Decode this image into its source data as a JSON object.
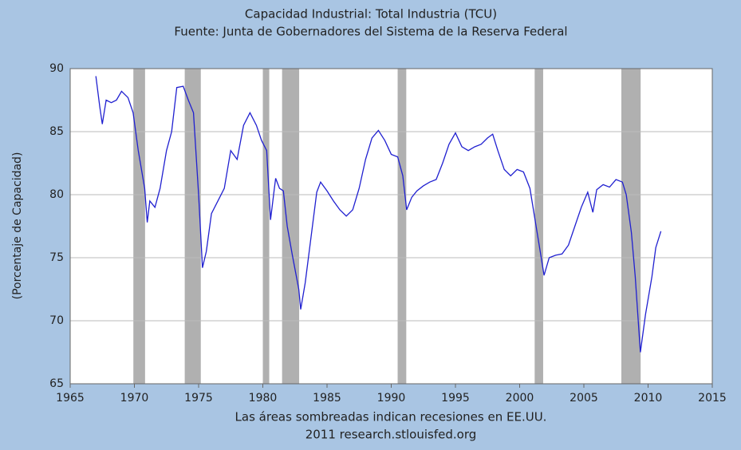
{
  "chart_data": {
    "type": "line",
    "title": "Capacidad Industrial: Total Industria (TCU)",
    "subtitle": "Fuente: Junta de Gobernadores del Sistema de la Reserva Federal",
    "ylabel": "(Porcentaje de Capacidad)",
    "note": "Las áreas sombreadas indican recesiones en EE.UU.",
    "source": "2011 research.stlouisfed.org",
    "xlim": [
      1965,
      2015
    ],
    "xticks": [
      1965,
      1970,
      1975,
      1980,
      1985,
      1990,
      1995,
      2000,
      2005,
      2010,
      2015
    ],
    "ylim": [
      65,
      90
    ],
    "yticks": [
      65,
      70,
      75,
      80,
      85,
      90
    ],
    "grid": true,
    "recession_color": "#b0b0b0",
    "recessions": [
      [
        1969.92,
        1970.83
      ],
      [
        1973.92,
        1975.17
      ],
      [
        1980.0,
        1980.5
      ],
      [
        1981.5,
        1982.83
      ],
      [
        1990.5,
        1991.17
      ],
      [
        2001.17,
        2001.83
      ],
      [
        2007.92,
        2009.42
      ]
    ],
    "series": [
      {
        "color": "#2020d0",
        "x": [
          1967.0,
          1967.3,
          1967.5,
          1967.8,
          1968.2,
          1968.6,
          1969.0,
          1969.5,
          1969.9,
          1970.3,
          1970.8,
          1971.0,
          1971.2,
          1971.6,
          1972.0,
          1972.5,
          1972.9,
          1973.3,
          1973.8,
          1974.2,
          1974.6,
          1975.0,
          1975.3,
          1975.6,
          1976.0,
          1976.5,
          1977.0,
          1977.5,
          1978.0,
          1978.5,
          1979.0,
          1979.5,
          1979.9,
          1980.3,
          1980.6,
          1980.9,
          1981.0,
          1981.3,
          1981.6,
          1981.9,
          1982.3,
          1982.8,
          1982.95,
          1983.3,
          1983.8,
          1984.2,
          1984.5,
          1985.0,
          1985.5,
          1986.0,
          1986.5,
          1987.0,
          1987.5,
          1988.0,
          1988.5,
          1989.0,
          1989.5,
          1990.0,
          1990.5,
          1990.9,
          1991.2,
          1991.6,
          1992.0,
          1992.5,
          1993.0,
          1993.5,
          1994.0,
          1994.5,
          1995.0,
          1995.5,
          1996.0,
          1996.5,
          1997.0,
          1997.5,
          1997.9,
          1998.3,
          1998.8,
          1999.3,
          1999.8,
          2000.3,
          2000.8,
          2001.2,
          2001.6,
          2001.9,
          2002.3,
          2002.8,
          2003.3,
          2003.8,
          2004.3,
          2004.8,
          2005.3,
          2005.7,
          2006.0,
          2006.5,
          2007.0,
          2007.5,
          2008.0,
          2008.3,
          2008.7,
          2009.0,
          2009.4,
          2009.8,
          2010.3,
          2010.6,
          2011.0
        ],
        "values": [
          89.4,
          87,
          85.6,
          87.5,
          87.3,
          87.5,
          88.2,
          87.7,
          86.5,
          83.5,
          80.5,
          77.8,
          79.5,
          79.0,
          80.5,
          83.5,
          85.0,
          88.5,
          88.6,
          87.5,
          86.5,
          80,
          74.2,
          75.5,
          78.5,
          79.5,
          80.5,
          83.5,
          82.8,
          85.5,
          86.5,
          85.5,
          84.3,
          83.5,
          78.0,
          80.5,
          81.3,
          80.5,
          80.3,
          77.5,
          75.2,
          72.5,
          70.9,
          73,
          77,
          80.2,
          81.0,
          80.3,
          79.5,
          78.8,
          78.3,
          78.8,
          80.5,
          82.8,
          84.5,
          85.1,
          84.3,
          83.2,
          83.0,
          81.5,
          78.8,
          79.8,
          80.3,
          80.7,
          81.0,
          81.2,
          82.5,
          84.0,
          84.9,
          83.8,
          83.5,
          83.8,
          84.0,
          84.5,
          84.8,
          83.5,
          82.0,
          81.5,
          82.0,
          81.8,
          80.5,
          78.0,
          75.5,
          73.6,
          75.0,
          75.2,
          75.3,
          76.0,
          77.5,
          79.0,
          80.2,
          78.6,
          80.4,
          80.8,
          80.6,
          81.2,
          81.0,
          80.0,
          77.0,
          73.5,
          67.5,
          70.5,
          73.5,
          75.8,
          77.1
        ]
      }
    ]
  }
}
